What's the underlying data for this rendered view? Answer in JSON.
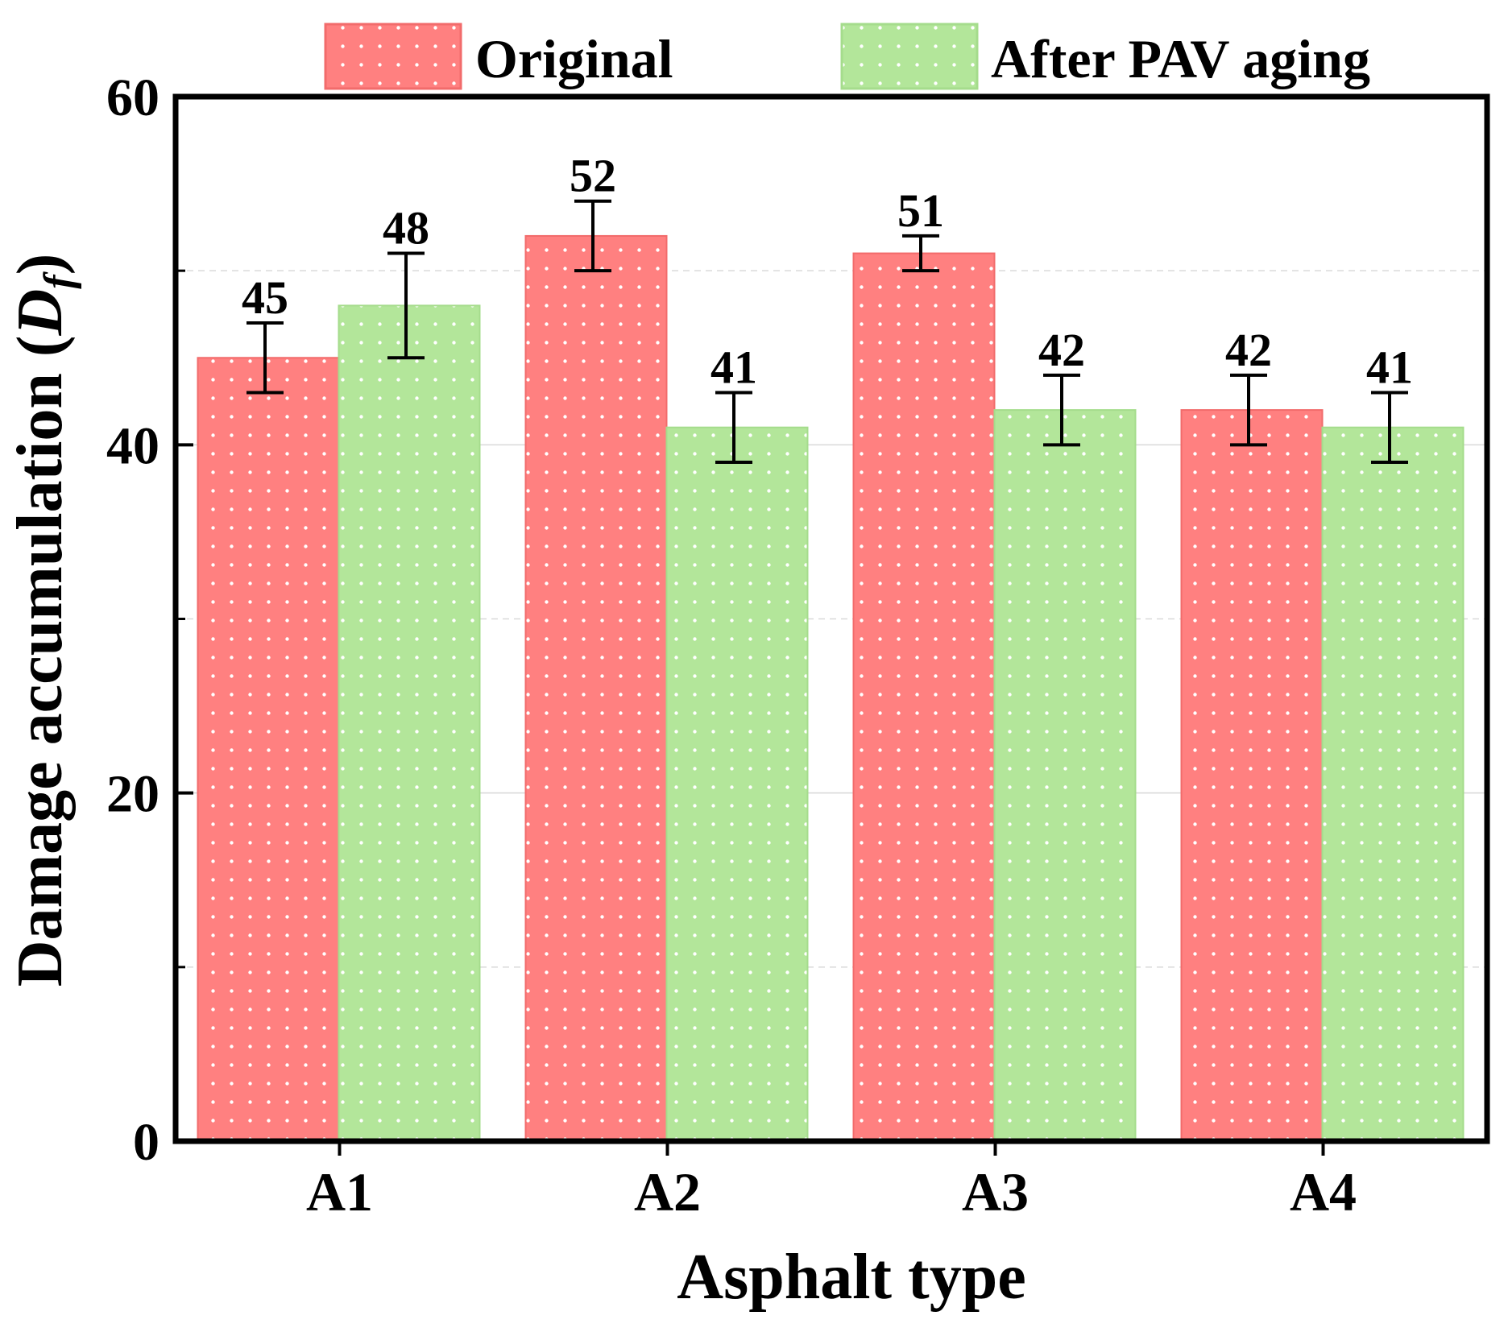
{
  "colors": {
    "original": "#ff8080",
    "aged": "#b3e69a",
    "dot": "#ffffff",
    "grid": "#d9d9d9",
    "axis": "#000000"
  },
  "chart_data": {
    "type": "bar",
    "xlabel": "Asphalt type",
    "ylabel_main": "Damage accumulation (",
    "ylabel_symbol": "D",
    "ylabel_subscript": "f",
    "ylabel_close": ")",
    "ylim": [
      0,
      60
    ],
    "yticks": [
      "0",
      "20",
      "40",
      "60"
    ],
    "minor_grid": [
      10,
      30,
      50
    ],
    "categories": [
      "A1",
      "A2",
      "A3",
      "A4"
    ],
    "legend_position": "top",
    "series": [
      {
        "name": "Original",
        "color_key": "original",
        "values": [
          45,
          52,
          51,
          42
        ],
        "labels": [
          "45",
          "52",
          "51",
          "42"
        ],
        "error": [
          2,
          2,
          1,
          2
        ]
      },
      {
        "name": "After PAV aging",
        "color_key": "aged",
        "values": [
          48,
          41,
          42,
          41
        ],
        "labels": [
          "48",
          "41",
          "42",
          "41"
        ],
        "error": [
          3,
          2,
          2,
          2
        ]
      }
    ]
  }
}
